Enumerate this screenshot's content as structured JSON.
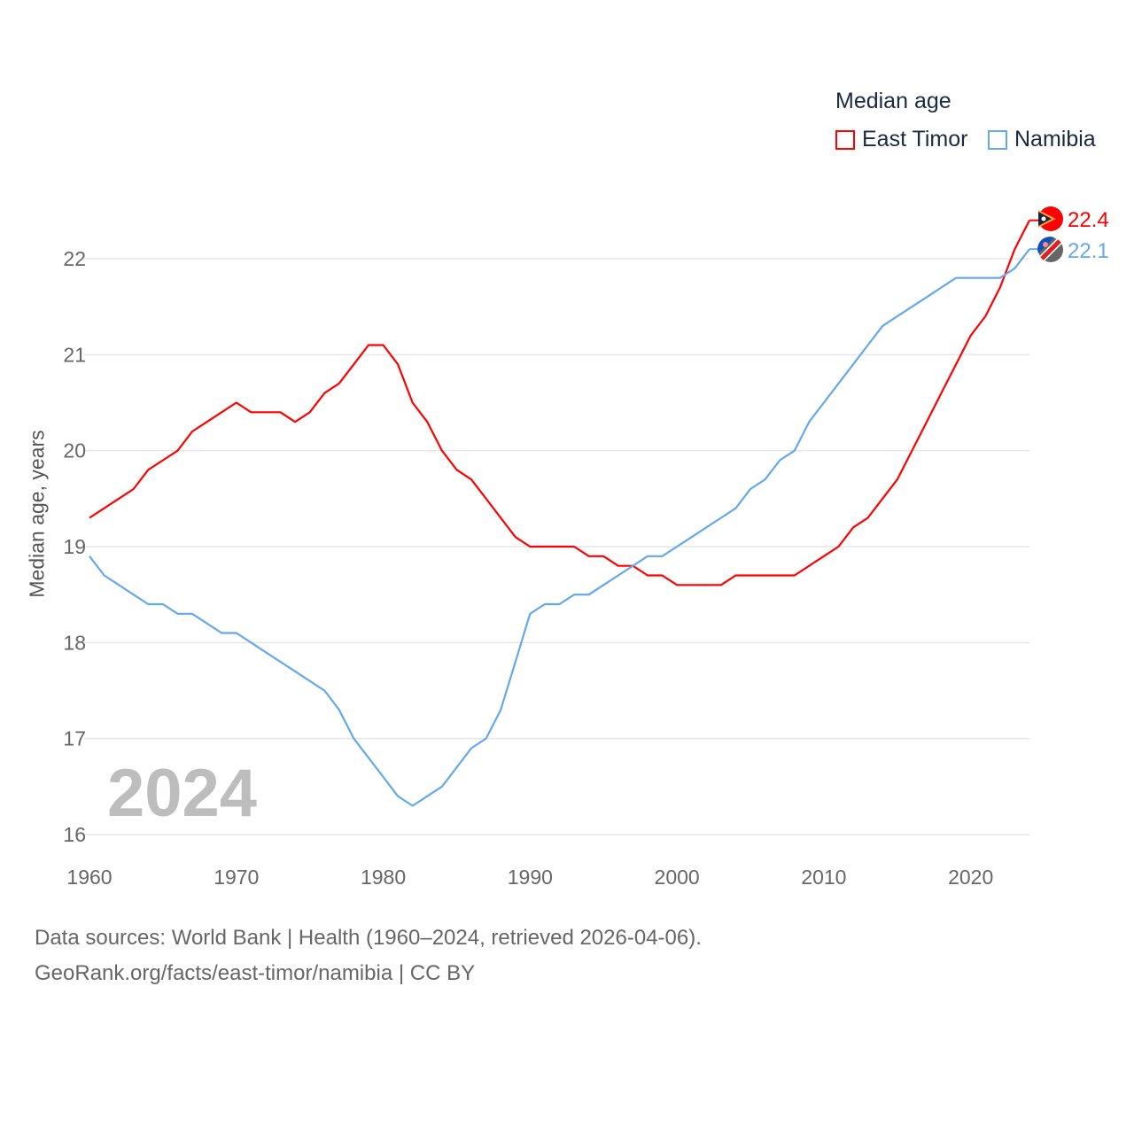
{
  "chart_data": {
    "type": "line",
    "title": "Median age",
    "ylabel": "Median age, years",
    "xlabel": "",
    "xlim": [
      1960,
      2024
    ],
    "ylim": [
      16,
      22.6
    ],
    "yticks": [
      16,
      17,
      18,
      19,
      20,
      21,
      22
    ],
    "xticks": [
      1960,
      1970,
      1980,
      1990,
      2000,
      2010,
      2020
    ],
    "grid": true,
    "legend_placement": "top-right",
    "current_year_label": "2024",
    "x_start": 1960,
    "series": [
      {
        "name": "East Timor",
        "color": "#ff0000",
        "end_label": "22.4",
        "values": [
          19.3,
          19.4,
          19.5,
          19.6,
          19.8,
          19.9,
          20.0,
          20.2,
          20.3,
          20.4,
          20.5,
          20.4,
          20.4,
          20.4,
          20.3,
          20.4,
          20.6,
          20.7,
          20.9,
          21.1,
          21.1,
          20.9,
          20.5,
          20.3,
          20.0,
          19.8,
          19.7,
          19.5,
          19.3,
          19.1,
          19.0,
          19.0,
          19.0,
          19.0,
          18.9,
          18.9,
          18.8,
          18.8,
          18.7,
          18.7,
          18.6,
          18.6,
          18.6,
          18.6,
          18.7,
          18.7,
          18.7,
          18.7,
          18.7,
          18.8,
          18.9,
          19.0,
          19.2,
          19.3,
          19.5,
          19.7,
          20.0,
          20.3,
          20.6,
          20.9,
          21.2,
          21.4,
          21.7,
          22.1,
          22.4
        ]
      },
      {
        "name": "Namibia",
        "color": "#63a8ee",
        "end_label": "22.1",
        "values": [
          18.9,
          18.7,
          18.6,
          18.5,
          18.4,
          18.4,
          18.3,
          18.3,
          18.2,
          18.1,
          18.1,
          18.0,
          17.9,
          17.8,
          17.7,
          17.6,
          17.5,
          17.3,
          17.0,
          16.8,
          16.6,
          16.4,
          16.3,
          16.4,
          16.5,
          16.7,
          16.9,
          17.0,
          17.3,
          17.8,
          18.3,
          18.4,
          18.4,
          18.5,
          18.5,
          18.6,
          18.7,
          18.8,
          18.9,
          18.9,
          19.0,
          19.1,
          19.2,
          19.3,
          19.4,
          19.6,
          19.7,
          19.9,
          20.0,
          20.3,
          20.5,
          20.7,
          20.9,
          21.1,
          21.3,
          21.4,
          21.5,
          21.6,
          21.7,
          21.8,
          21.8,
          21.8,
          21.8,
          21.9,
          22.1
        ]
      }
    ]
  },
  "footer": {
    "source_line": "Data sources: World Bank | Health (1960–2024, retrieved 2026-04-06).",
    "url_line": "GeoRank.org/facts/east-timor/namibia | CC BY"
  }
}
